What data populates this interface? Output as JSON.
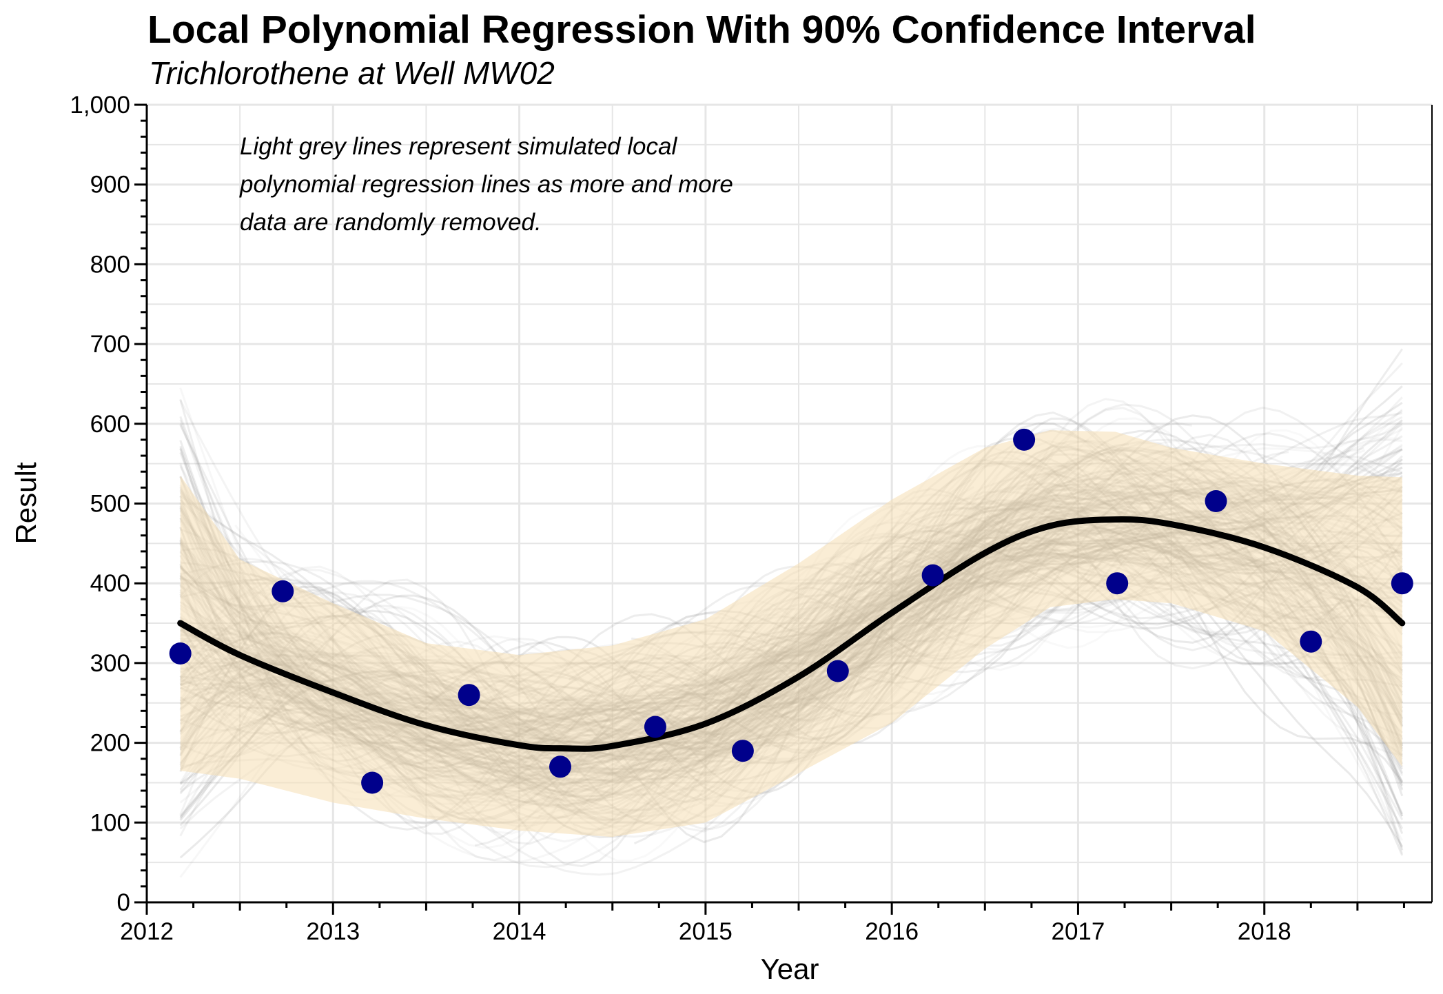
{
  "chart_data": {
    "type": "scatter",
    "title": "Local Polynomial Regression With 90% Confidence Interval",
    "subtitle": "Trichlorothene at Well MW02",
    "xlabel": "Year",
    "ylabel": "Result",
    "xlim": [
      2012,
      2018.9
    ],
    "ylim": [
      0,
      1000
    ],
    "x_ticks": [
      "2012",
      "2013",
      "2014",
      "2015",
      "2016",
      "2017",
      "2018"
    ],
    "y_ticks": [
      "0",
      "100",
      "200",
      "300",
      "400",
      "500",
      "600",
      "700",
      "800",
      "900",
      "1,000"
    ],
    "grid": true,
    "annotation": [
      "Light grey lines represent simulated local",
      "polynomial regression lines as more and more",
      "data are randomly removed."
    ],
    "colors": {
      "points": "#00008b",
      "fit": "#000000",
      "band": "#f5deb3",
      "sim_lines": "#808080",
      "grid": "#e6e6e6"
    },
    "points": {
      "x": [
        2012.18,
        2012.73,
        2013.21,
        2013.73,
        2014.22,
        2014.73,
        2015.2,
        2015.71,
        2016.22,
        2016.71,
        2017.21,
        2017.74,
        2018.25,
        2018.74
      ],
      "y": [
        312,
        390,
        150,
        260,
        170,
        220,
        190,
        290,
        410,
        580,
        400,
        503,
        327,
        400
      ]
    },
    "fit": {
      "x": [
        2012.18,
        2012.5,
        2013.0,
        2013.5,
        2014.0,
        2014.25,
        2014.5,
        2015.0,
        2015.5,
        2016.0,
        2016.5,
        2016.85,
        2017.2,
        2017.5,
        2018.0,
        2018.5,
        2018.74
      ],
      "y": [
        350,
        310,
        263,
        222,
        197,
        193,
        196,
        224,
        283,
        363,
        438,
        472,
        480,
        474,
        445,
        395,
        350
      ]
    },
    "band": {
      "x": [
        2012.18,
        2012.5,
        2013.0,
        2013.5,
        2014.0,
        2014.5,
        2015.0,
        2015.5,
        2016.0,
        2016.5,
        2016.85,
        2017.2,
        2017.5,
        2018.0,
        2018.5,
        2018.74
      ],
      "upper": [
        535,
        430,
        375,
        325,
        310,
        322,
        355,
        425,
        505,
        570,
        592,
        590,
        570,
        550,
        535,
        533
      ],
      "lower": [
        165,
        155,
        125,
        105,
        90,
        82,
        100,
        162,
        225,
        318,
        370,
        380,
        375,
        340,
        245,
        170
      ]
    }
  }
}
